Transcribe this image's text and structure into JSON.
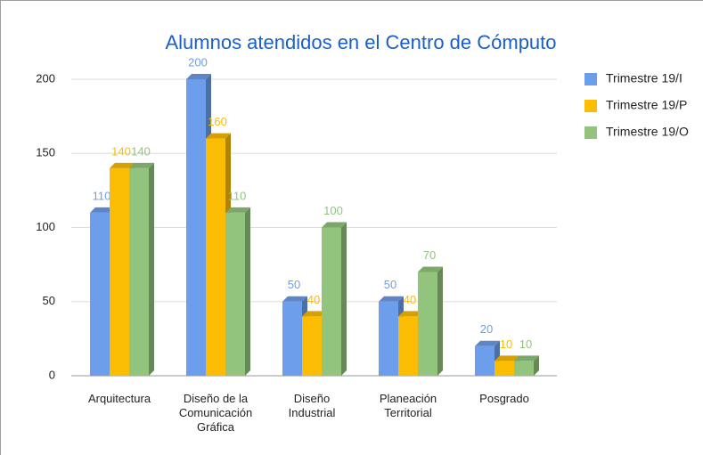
{
  "chart_data": {
    "type": "bar3d",
    "title": "Alumnos atendidos en el Centro de Cómputo",
    "categories": [
      "Arquitectura",
      "Diseño de la Comunicación Gráfica",
      "Diseño Industrial",
      "Planeación Territorial",
      "Posgrado"
    ],
    "series": [
      {
        "name": "Trimestre 19/I",
        "color": "#6d9eeb",
        "values": [
          110,
          200,
          50,
          50,
          20
        ]
      },
      {
        "name": "Trimestre 19/P",
        "color": "#fbbc04",
        "values": [
          140,
          160,
          40,
          40,
          10
        ]
      },
      {
        "name": "Trimestre 19/O",
        "color": "#93c47d",
        "values": [
          140,
          110,
          100,
          70,
          10
        ]
      }
    ],
    "ylim": [
      0,
      200
    ],
    "yticks": [
      0,
      50,
      100,
      150,
      200
    ],
    "grid": true,
    "legend": "right"
  }
}
